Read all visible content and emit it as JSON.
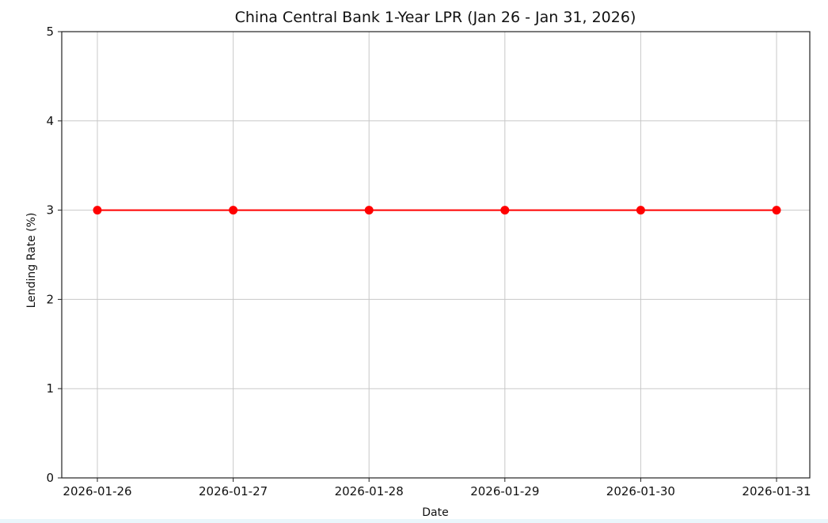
{
  "chart_data": {
    "type": "line",
    "title": "China Central Bank 1-Year LPR (Jan 26 - Jan 31, 2026)",
    "xlabel": "Date",
    "ylabel": "Lending Rate (%)",
    "categories": [
      "2026-01-26",
      "2026-01-27",
      "2026-01-28",
      "2026-01-29",
      "2026-01-30",
      "2026-01-31"
    ],
    "series": [
      {
        "values": [
          3,
          3,
          3,
          3,
          3,
          3
        ],
        "color": "#ff0000",
        "marker": "circle"
      }
    ],
    "ylim": [
      0,
      5
    ],
    "yticks": [
      0,
      1,
      2,
      3,
      4,
      5
    ],
    "grid": true,
    "legend": "none"
  }
}
